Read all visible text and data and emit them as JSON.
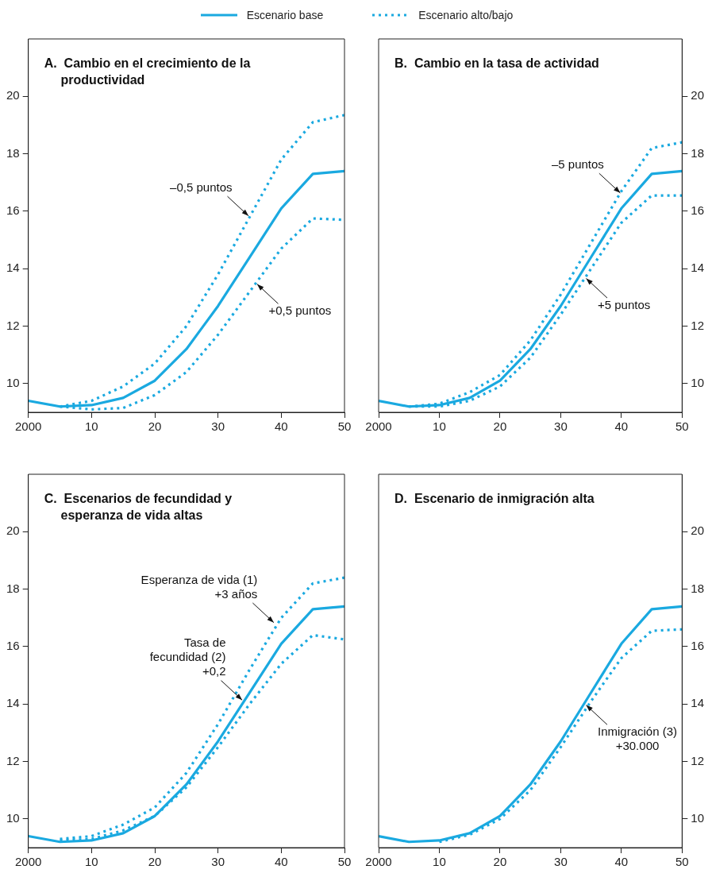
{
  "chart_data": [
    {
      "type": "line",
      "title": "A.  Cambio en el crecimiento de la productividad",
      "legend": "top",
      "x": [
        2000,
        2005,
        2010,
        2015,
        2020,
        2025,
        2030,
        2035,
        2040,
        2045,
        2050
      ],
      "xlim": [
        2000,
        2050
      ],
      "xticks": [
        {
          "value": 2000,
          "label": "2000"
        },
        {
          "value": 2010,
          "label": "10"
        },
        {
          "value": 2020,
          "label": "20"
        },
        {
          "value": 2030,
          "label": "30"
        },
        {
          "value": 2040,
          "label": "40"
        },
        {
          "value": 2050,
          "label": "50"
        }
      ],
      "ylim": [
        9,
        22
      ],
      "yticks": [
        10,
        12,
        14,
        16,
        18,
        20
      ],
      "grid": false,
      "marker": "none",
      "series": [
        {
          "name": "Escenario base",
          "color": "#1aa9e0",
          "line_style": "solid",
          "values": [
            9.4,
            9.2,
            9.25,
            9.5,
            10.1,
            11.2,
            12.7,
            14.4,
            16.1,
            17.3,
            17.4
          ]
        },
        {
          "name": "Escenario alto/bajo",
          "color": "#1aa9e0",
          "line_style": "dotted",
          "values": [
            null,
            9.2,
            9.4,
            9.9,
            10.7,
            12.0,
            13.8,
            15.8,
            17.8,
            19.1,
            19.35
          ]
        },
        {
          "color": "#1aa9e0",
          "line_style": "dotted",
          "values": [
            null,
            9.2,
            9.1,
            9.15,
            9.6,
            10.4,
            11.7,
            13.2,
            14.7,
            15.75,
            15.7
          ]
        }
      ],
      "annotations": [
        {
          "text": "–0,5 puntos",
          "x": 2035,
          "y": 15.8
        },
        {
          "text": "+0,5 puntos",
          "x": 2036,
          "y": 13.5
        }
      ]
    },
    {
      "type": "line",
      "title": "B.  Cambio en la tasa de actividad",
      "legend": "top",
      "x": [
        2000,
        2005,
        2010,
        2015,
        2020,
        2025,
        2030,
        2035,
        2040,
        2045,
        2050
      ],
      "xlim": [
        2000,
        2050
      ],
      "xticks": [
        {
          "value": 2000,
          "label": "2000"
        },
        {
          "value": 2010,
          "label": "10"
        },
        {
          "value": 2020,
          "label": "20"
        },
        {
          "value": 2030,
          "label": "30"
        },
        {
          "value": 2040,
          "label": "40"
        },
        {
          "value": 2050,
          "label": "50"
        }
      ],
      "ylim": [
        9,
        22
      ],
      "yticks": [
        10,
        12,
        14,
        16,
        18,
        20
      ],
      "grid": false,
      "marker": "none",
      "series": [
        {
          "name": "Escenario base",
          "color": "#1aa9e0",
          "line_style": "solid",
          "values": [
            9.4,
            9.2,
            9.25,
            9.5,
            10.1,
            11.2,
            12.7,
            14.4,
            16.1,
            17.3,
            17.4
          ]
        },
        {
          "name": "Escenario alto/bajo",
          "color": "#1aa9e0",
          "line_style": "dotted",
          "values": [
            null,
            9.2,
            9.3,
            9.7,
            10.3,
            11.5,
            13.1,
            14.9,
            16.7,
            18.2,
            18.4
          ]
        },
        {
          "color": "#1aa9e0",
          "line_style": "dotted",
          "values": [
            null,
            9.2,
            9.2,
            9.4,
            9.9,
            10.9,
            12.4,
            14.0,
            15.6,
            16.55,
            16.55
          ]
        }
      ],
      "annotations": [
        {
          "text": "–5 puntos",
          "x": 2040,
          "y": 16.6
        },
        {
          "text": "+5 puntos",
          "x": 2034,
          "y": 13.7
        }
      ]
    },
    {
      "type": "line",
      "title": "C.  Escenarios de fecundidad y esperanza de vida altas",
      "legend": "top",
      "x": [
        2000,
        2005,
        2010,
        2015,
        2020,
        2025,
        2030,
        2035,
        2040,
        2045,
        2050
      ],
      "xlim": [
        2000,
        2050
      ],
      "xticks": [
        {
          "value": 2000,
          "label": "2000"
        },
        {
          "value": 2010,
          "label": "10"
        },
        {
          "value": 2020,
          "label": "20"
        },
        {
          "value": 2030,
          "label": "30"
        },
        {
          "value": 2040,
          "label": "40"
        },
        {
          "value": 2050,
          "label": "50"
        }
      ],
      "ylim": [
        9,
        22
      ],
      "yticks": [
        10,
        12,
        14,
        16,
        18,
        20
      ],
      "grid": false,
      "marker": "none",
      "series": [
        {
          "name": "Escenario base",
          "color": "#1aa9e0",
          "line_style": "solid",
          "values": [
            9.4,
            9.2,
            9.25,
            9.5,
            10.1,
            11.2,
            12.7,
            14.4,
            16.1,
            17.3,
            17.4
          ]
        },
        {
          "name": "Escenario alto/bajo",
          "color": "#1aa9e0",
          "line_style": "dotted",
          "values": [
            null,
            9.3,
            9.4,
            9.8,
            10.4,
            11.6,
            13.3,
            15.2,
            17.0,
            18.2,
            18.4
          ]
        },
        {
          "color": "#1aa9e0",
          "line_style": "dotted",
          "values": [
            null,
            9.25,
            9.3,
            9.6,
            10.1,
            11.1,
            12.5,
            14.0,
            15.4,
            16.4,
            16.25
          ]
        }
      ],
      "annotations": [
        {
          "text": "Esperanza de vida (1)\n+3 años",
          "x": 2039,
          "y": 16.8
        },
        {
          "text": "Tasa de\nfecundidad (2)\n+0,2",
          "x": 2034,
          "y": 14.1
        }
      ]
    },
    {
      "type": "line",
      "title": "D.  Escenario de inmigración alta",
      "legend": "top",
      "x": [
        2000,
        2005,
        2010,
        2015,
        2020,
        2025,
        2030,
        2035,
        2040,
        2045,
        2050
      ],
      "xlim": [
        2000,
        2050
      ],
      "xticks": [
        {
          "value": 2000,
          "label": "2000"
        },
        {
          "value": 2010,
          "label": "10"
        },
        {
          "value": 2020,
          "label": "20"
        },
        {
          "value": 2030,
          "label": "30"
        },
        {
          "value": 2040,
          "label": "40"
        },
        {
          "value": 2050,
          "label": "50"
        }
      ],
      "ylim": [
        9,
        22
      ],
      "yticks": [
        10,
        12,
        14,
        16,
        18,
        20
      ],
      "grid": false,
      "marker": "none",
      "series": [
        {
          "name": "Escenario base",
          "color": "#1aa9e0",
          "line_style": "solid",
          "values": [
            9.4,
            9.2,
            9.25,
            9.5,
            10.1,
            11.2,
            12.7,
            14.4,
            16.1,
            17.3,
            17.4
          ]
        },
        {
          "name": "Escenario alto/bajo",
          "color": "#1aa9e0",
          "line_style": "dotted",
          "values": [
            null,
            null,
            9.2,
            9.45,
            10.0,
            11.0,
            12.5,
            14.1,
            15.6,
            16.55,
            16.6
          ]
        }
      ],
      "annotations": [
        {
          "text": "Inmigración (3)\n+30.000",
          "x": 2034,
          "y": 14.0
        }
      ]
    }
  ]
}
